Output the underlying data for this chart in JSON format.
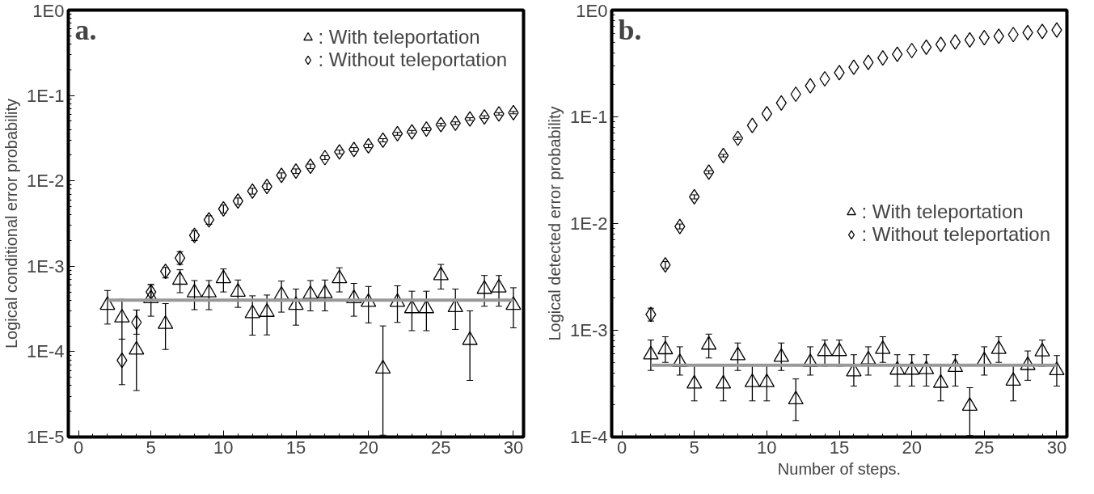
{
  "chart_data": [
    {
      "type": "scatter",
      "title": "a.",
      "ylabel": "Logical conditional error probability",
      "log": "y",
      "legend": "top right",
      "grid": false,
      "xlim": [
        -0.7,
        30.7
      ],
      "xticks": [
        0,
        5,
        10,
        15,
        20,
        25,
        30
      ],
      "ylim": [
        1e-05,
        1
      ],
      "yticks": [
        {
          "value": 1e-05,
          "label": "1E-5"
        },
        {
          "value": 0.0001,
          "label": "1E-4"
        },
        {
          "value": 0.001,
          "label": "1E-3"
        },
        {
          "value": 0.01,
          "label": "1E-2"
        },
        {
          "value": 0.1,
          "label": "1E-1"
        },
        {
          "value": 1,
          "label": "1E0"
        }
      ],
      "series": [
        {
          "name": ": With teleportation",
          "color": "#000000",
          "marker": "triangle",
          "x": [
            2,
            3,
            4,
            5,
            6,
            7,
            8,
            9,
            10,
            11,
            12,
            13,
            14,
            15,
            16,
            17,
            18,
            19,
            20,
            21,
            22,
            23,
            24,
            25,
            26,
            27,
            28,
            29,
            30
          ],
          "values": [
            0.00035,
            0.00025,
            0.000105,
            0.00042,
            0.00021,
            0.00069,
            0.00049,
            0.00049,
            0.00072,
            0.0005,
            0.00028,
            0.00029,
            0.00046,
            0.00035,
            0.00047,
            0.00048,
            0.00072,
            0.00042,
            0.00038,
            6.3e-05,
            0.00038,
            0.00032,
            0.00032,
            0.00078,
            0.00033,
            0.000136,
            0.00054,
            0.00056,
            0.00035
          ],
          "errors": [
            [
              0.00021,
              0.00052
            ],
            [
              0.00014,
              0.00041
            ],
            [
              3.5e-05,
              0.000307
            ],
            [
              0.00026,
              0.00061
            ],
            [
              0.000106,
              0.000365
            ],
            [
              0.00049,
              0.00091
            ],
            [
              0.00031,
              0.00068
            ],
            [
              0.00031,
              0.00068
            ],
            [
              0.0005,
              0.00093
            ],
            [
              0.00033,
              0.00069
            ],
            [
              0.000156,
              0.00045
            ],
            [
              0.000157,
              0.00046
            ],
            [
              0.00029,
              0.00067
            ],
            [
              0.000204,
              0.00054
            ],
            [
              0.0003,
              0.00068
            ],
            [
              0.0003,
              0.00069
            ],
            [
              0.0005,
              0.00096
            ],
            [
              0.00026,
              0.00063
            ],
            [
              0.000217,
              0.00058
            ],
            [
              1.05e-05,
              0.0002
            ],
            [
              0.00022,
              0.00059
            ],
            [
              0.000176,
              0.00051
            ],
            [
              0.000176,
              0.00051
            ],
            [
              0.00054,
              0.00105
            ],
            [
              0.000182,
              0.00054
            ],
            [
              4.6e-05,
              0.0003
            ],
            [
              0.00034,
              0.00078
            ],
            [
              0.00034,
              0.00078
            ],
            [
              0.00019,
              0.00056
            ]
          ]
        },
        {
          "name": ": Without teleportation",
          "color": "#000000",
          "marker": "diamond",
          "x": [
            3,
            4,
            5,
            6,
            7,
            8,
            9,
            10,
            11,
            12,
            13,
            14,
            15,
            16,
            17,
            18,
            19,
            20,
            21,
            22,
            23,
            24,
            25,
            26,
            27,
            28,
            29,
            30
          ],
          "values": [
            7.9e-05,
            0.00022,
            0.0005,
            0.00087,
            0.00125,
            0.0023,
            0.0035,
            0.0047,
            0.0058,
            0.0076,
            0.0086,
            0.0116,
            0.013,
            0.0148,
            0.0187,
            0.0218,
            0.0233,
            0.0257,
            0.0299,
            0.0356,
            0.0375,
            0.0404,
            0.0456,
            0.0473,
            0.053,
            0.056,
            0.061,
            0.063
          ],
          "errors": [
            [
              4.1e-05,
              0.00014
            ],
            [
              0.00016,
              0.000307
            ],
            [
              0.00041,
              0.00061
            ],
            [
              0.00073,
              0.00097
            ],
            [
              0.00105,
              0.00148
            ],
            0.0003,
            0.0004,
            0.0005,
            0.0005,
            0.0006,
            0.0007,
            0.0008,
            0.0008,
            0.0009,
            0.001,
            0.0011,
            0.0012,
            0.0012,
            0.0013,
            0.0014,
            0.0015,
            0.0016,
            0.0017,
            0.0018,
            0.0019,
            0.002,
            0.002,
            0.002
          ]
        },
        {
          "type": "line",
          "color": "#999999",
          "x": [
            2,
            30
          ],
          "values": [
            0.0004,
            0.0004
          ]
        }
      ]
    },
    {
      "type": "scatter",
      "title": "b.",
      "ylabel": "Logical detected error probability",
      "xlabel": "Number of steps.",
      "log": "y",
      "legend": "right",
      "grid": false,
      "xlim": [
        -0.7,
        30.7
      ],
      "xticks": [
        0,
        5,
        10,
        15,
        20,
        25,
        30
      ],
      "ylim": [
        0.0001,
        1
      ],
      "yticks": [
        {
          "value": 0.0001,
          "label": "1E-4"
        },
        {
          "value": 0.001,
          "label": "1E-3"
        },
        {
          "value": 0.01,
          "label": "1E-2"
        },
        {
          "value": 0.1,
          "label": "1E-1"
        },
        {
          "value": 1,
          "label": "1E0"
        }
      ],
      "series": [
        {
          "name": ": With teleportation",
          "color": "#000000",
          "marker": "triangle",
          "x": [
            2,
            3,
            4,
            5,
            6,
            7,
            8,
            9,
            10,
            11,
            12,
            13,
            14,
            15,
            16,
            17,
            18,
            19,
            20,
            21,
            22,
            23,
            24,
            25,
            26,
            27,
            28,
            29,
            30
          ],
          "values": [
            0.00059,
            0.00066,
            0.0005,
            0.000315,
            0.00073,
            0.000315,
            0.00058,
            0.000325,
            0.000325,
            0.00056,
            0.000224,
            0.0005,
            0.000635,
            0.000635,
            0.00041,
            0.00053,
            0.000665,
            0.000425,
            0.000425,
            0.00043,
            0.00032,
            0.00045,
            0.000195,
            0.00052,
            0.000665,
            0.000335,
            0.00047,
            0.00063,
            0.00042
          ],
          "errors": [
            [
              0.00042,
              0.00081
            ],
            [
              0.0005,
              0.00087
            ],
            [
              0.00038,
              0.0007
            ],
            [
              0.000218,
              0.00047
            ],
            [
              0.00055,
              0.00092
            ],
            [
              0.000218,
              0.00047
            ],
            [
              0.00042,
              0.00076
            ],
            [
              0.000218,
              0.00047
            ],
            [
              0.000218,
              0.00047
            ],
            [
              0.00042,
              0.00076
            ],
            [
              0.000142,
              0.00035
            ],
            [
              0.00038,
              0.0007
            ],
            [
              0.00046,
              0.00081
            ],
            [
              0.00046,
              0.00081
            ],
            [
              0.0003,
              0.00059
            ],
            [
              0.00038,
              0.0007
            ],
            [
              0.0005,
              0.00087
            ],
            [
              0.0003,
              0.00059
            ],
            [
              0.0003,
              0.00059
            ],
            [
              0.0003,
              0.00059
            ],
            [
              0.000218,
              0.00047
            ],
            [
              0.0003,
              0.00059
            ],
            [
              0.000103,
              0.00029
            ],
            [
              0.00038,
              0.0007
            ],
            [
              0.0005,
              0.00087
            ],
            [
              0.000218,
              0.00047
            ],
            [
              0.00034,
              0.00064
            ],
            [
              0.00046,
              0.00081
            ],
            [
              0.0003,
              0.00058
            ]
          ]
        },
        {
          "name": ": Without teleportation",
          "color": "#000000",
          "marker": "diamond",
          "x": [
            2,
            3,
            4,
            5,
            6,
            7,
            8,
            9,
            10,
            11,
            12,
            13,
            14,
            15,
            16,
            17,
            18,
            19,
            20,
            21,
            22,
            23,
            24,
            25,
            26,
            27,
            28,
            29,
            30
          ],
          "values": [
            0.00141,
            0.0041,
            0.0094,
            0.0178,
            0.0303,
            0.0433,
            0.063,
            0.083,
            0.107,
            0.135,
            0.163,
            0.195,
            0.227,
            0.259,
            0.292,
            0.324,
            0.357,
            0.386,
            0.418,
            0.45,
            0.478,
            0.504,
            0.526,
            0.552,
            0.569,
            0.59,
            0.616,
            0.631,
            0.65
          ],
          "errors": [
            [
              0.00122,
              0.00161
            ],
            0.0003,
            0.0005,
            0.0008,
            0.001,
            0.0012,
            0.0015,
            null,
            null,
            null,
            null,
            null,
            null,
            null,
            null,
            null,
            null,
            null,
            null,
            null,
            null,
            null,
            null,
            null,
            null,
            null,
            null,
            null,
            null
          ]
        },
        {
          "type": "line",
          "color": "#999999",
          "x": [
            2,
            30
          ],
          "values": [
            0.00047,
            0.00047
          ]
        }
      ]
    }
  ]
}
